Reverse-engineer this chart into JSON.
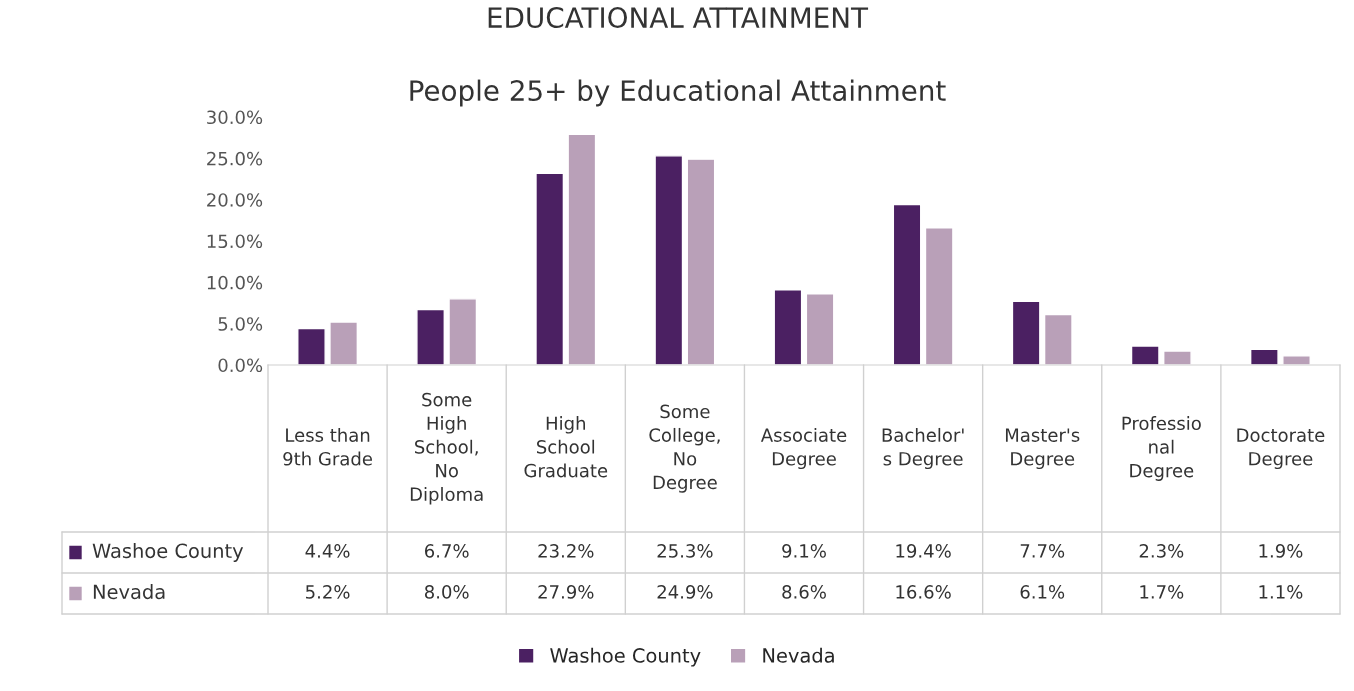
{
  "chart_data": {
    "type": "bar",
    "title": "EDUCATIONAL ATTAINMENT",
    "subtitle": "People 25+ by Educational Attainment",
    "categories": [
      "Less than\n9th Grade",
      "Some\nHigh\nSchool,\nNo\nDiploma",
      "High\nSchool\nGraduate",
      "Some\nCollege,\nNo\nDegree",
      "Associate\nDegree",
      "Bachelor'\ns Degree",
      "Master's\nDegree",
      "Professio\nnal\nDegree",
      "Doctorate\nDegree"
    ],
    "series": [
      {
        "name": "Washoe County",
        "color": "#4b2062",
        "values": [
          4.4,
          6.7,
          23.2,
          25.3,
          9.1,
          19.4,
          7.7,
          2.3,
          1.9
        ],
        "value_labels": [
          "4.4%",
          "6.7%",
          "23.2%",
          "25.3%",
          "9.1%",
          "19.4%",
          "7.7%",
          "2.3%",
          "1.9%"
        ]
      },
      {
        "name": "Nevada",
        "color": "#b9a0b8",
        "values": [
          5.2,
          8.0,
          27.9,
          24.9,
          8.6,
          16.6,
          6.1,
          1.7,
          1.1
        ],
        "value_labels": [
          "5.2%",
          "8.0%",
          "27.9%",
          "24.9%",
          "8.6%",
          "16.6%",
          "6.1%",
          "1.7%",
          "1.1%"
        ]
      }
    ],
    "ylim": [
      0,
      30
    ],
    "yticks": [
      {
        "value": 0,
        "label": "0.0%"
      },
      {
        "value": 5,
        "label": "5.0%"
      },
      {
        "value": 10,
        "label": "10.0%"
      },
      {
        "value": 15,
        "label": "15.0%"
      },
      {
        "value": 20,
        "label": "20.0%"
      },
      {
        "value": 25,
        "label": "25.0%"
      },
      {
        "value": 30,
        "label": "30.0%"
      }
    ],
    "grid": false,
    "legend": "bottom"
  }
}
